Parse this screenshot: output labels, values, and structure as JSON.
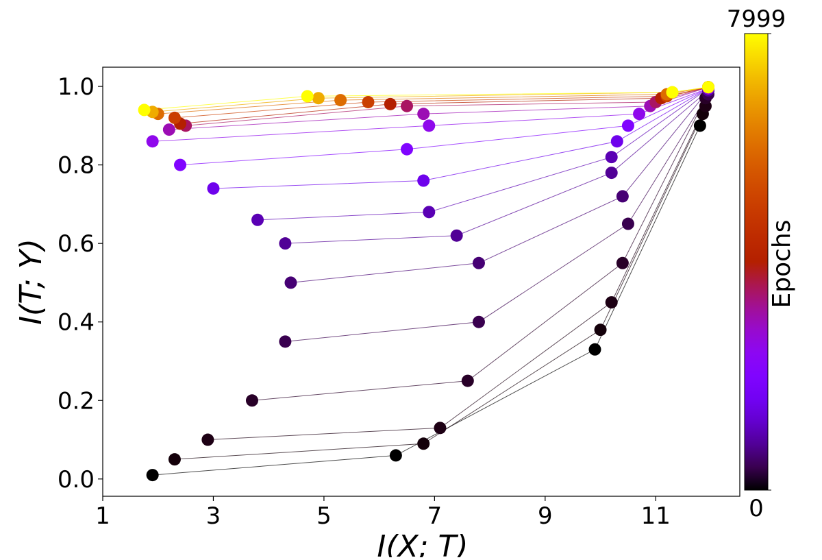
{
  "chart_data": {
    "type": "scatter",
    "x_label": "I(X; T)",
    "y_label": "I(T; Y)",
    "xlim": [
      1,
      12.52
    ],
    "ylim": [
      -0.044,
      1.049
    ],
    "xticks": [
      1,
      3,
      5,
      7,
      9,
      11
    ],
    "yticks": [
      {
        "value": 0,
        "label": "0.0"
      },
      {
        "value": 0.2,
        "label": "0.2"
      },
      {
        "value": 0.4,
        "label": "0.4"
      },
      {
        "value": 0.6,
        "label": "0.6"
      },
      {
        "value": 0.8,
        "label": "0.8"
      },
      {
        "value": 1,
        "label": "1.0"
      }
    ],
    "colormap": "gnuplot",
    "colorbar_label": "Epochs",
    "clim": [
      0,
      7999
    ],
    "cticks": [
      0,
      7999
    ],
    "epochs": [
      0,
      50,
      100,
      200,
      400,
      600,
      800,
      1000,
      1500,
      2000,
      2500,
      3000,
      3500,
      4000,
      5000,
      6000,
      7000,
      7999
    ],
    "series": [
      {
        "x": [
          1.9,
          2.3,
          2.9,
          3.7,
          4.3,
          4.4,
          4.3,
          3.8,
          3.0,
          2.4,
          1.9,
          2.2,
          2.5,
          2.4,
          2.3,
          2.0,
          1.9,
          1.75
        ],
        "y": [
          0.01,
          0.05,
          0.1,
          0.2,
          0.35,
          0.5,
          0.6,
          0.66,
          0.74,
          0.8,
          0.86,
          0.89,
          0.9,
          0.905,
          0.92,
          0.93,
          0.935,
          0.94
        ]
      },
      {
        "x": [
          6.3,
          6.8,
          7.1,
          7.6,
          7.8,
          7.8,
          7.4,
          6.9,
          6.8,
          6.5,
          6.9,
          6.8,
          6.5,
          6.2,
          5.8,
          5.3,
          4.9,
          4.7
        ],
        "y": [
          0.06,
          0.09,
          0.13,
          0.25,
          0.4,
          0.55,
          0.62,
          0.68,
          0.76,
          0.84,
          0.9,
          0.93,
          0.95,
          0.955,
          0.96,
          0.965,
          0.97,
          0.975
        ]
      },
      {
        "x": [
          9.9,
          10.0,
          10.2,
          10.4,
          10.5,
          10.4,
          10.2,
          10.2,
          10.3,
          10.5,
          10.7,
          10.9,
          11.0,
          11.1,
          11.2,
          11.2,
          11.3,
          11.3
        ],
        "y": [
          0.33,
          0.38,
          0.45,
          0.55,
          0.65,
          0.72,
          0.78,
          0.82,
          0.86,
          0.9,
          0.93,
          0.95,
          0.96,
          0.97,
          0.975,
          0.98,
          0.985,
          0.985
        ]
      },
      {
        "x": [
          11.8,
          11.85,
          11.9,
          11.9,
          11.95,
          11.95,
          11.95,
          11.95,
          11.95,
          11.95,
          11.95,
          11.95,
          11.95,
          11.95,
          11.95,
          11.95,
          11.95,
          11.95
        ],
        "y": [
          0.9,
          0.93,
          0.95,
          0.97,
          0.98,
          0.99,
          0.99,
          0.995,
          0.995,
          0.995,
          0.995,
          0.998,
          0.998,
          0.998,
          0.998,
          0.998,
          0.998,
          0.998
        ]
      }
    ]
  }
}
